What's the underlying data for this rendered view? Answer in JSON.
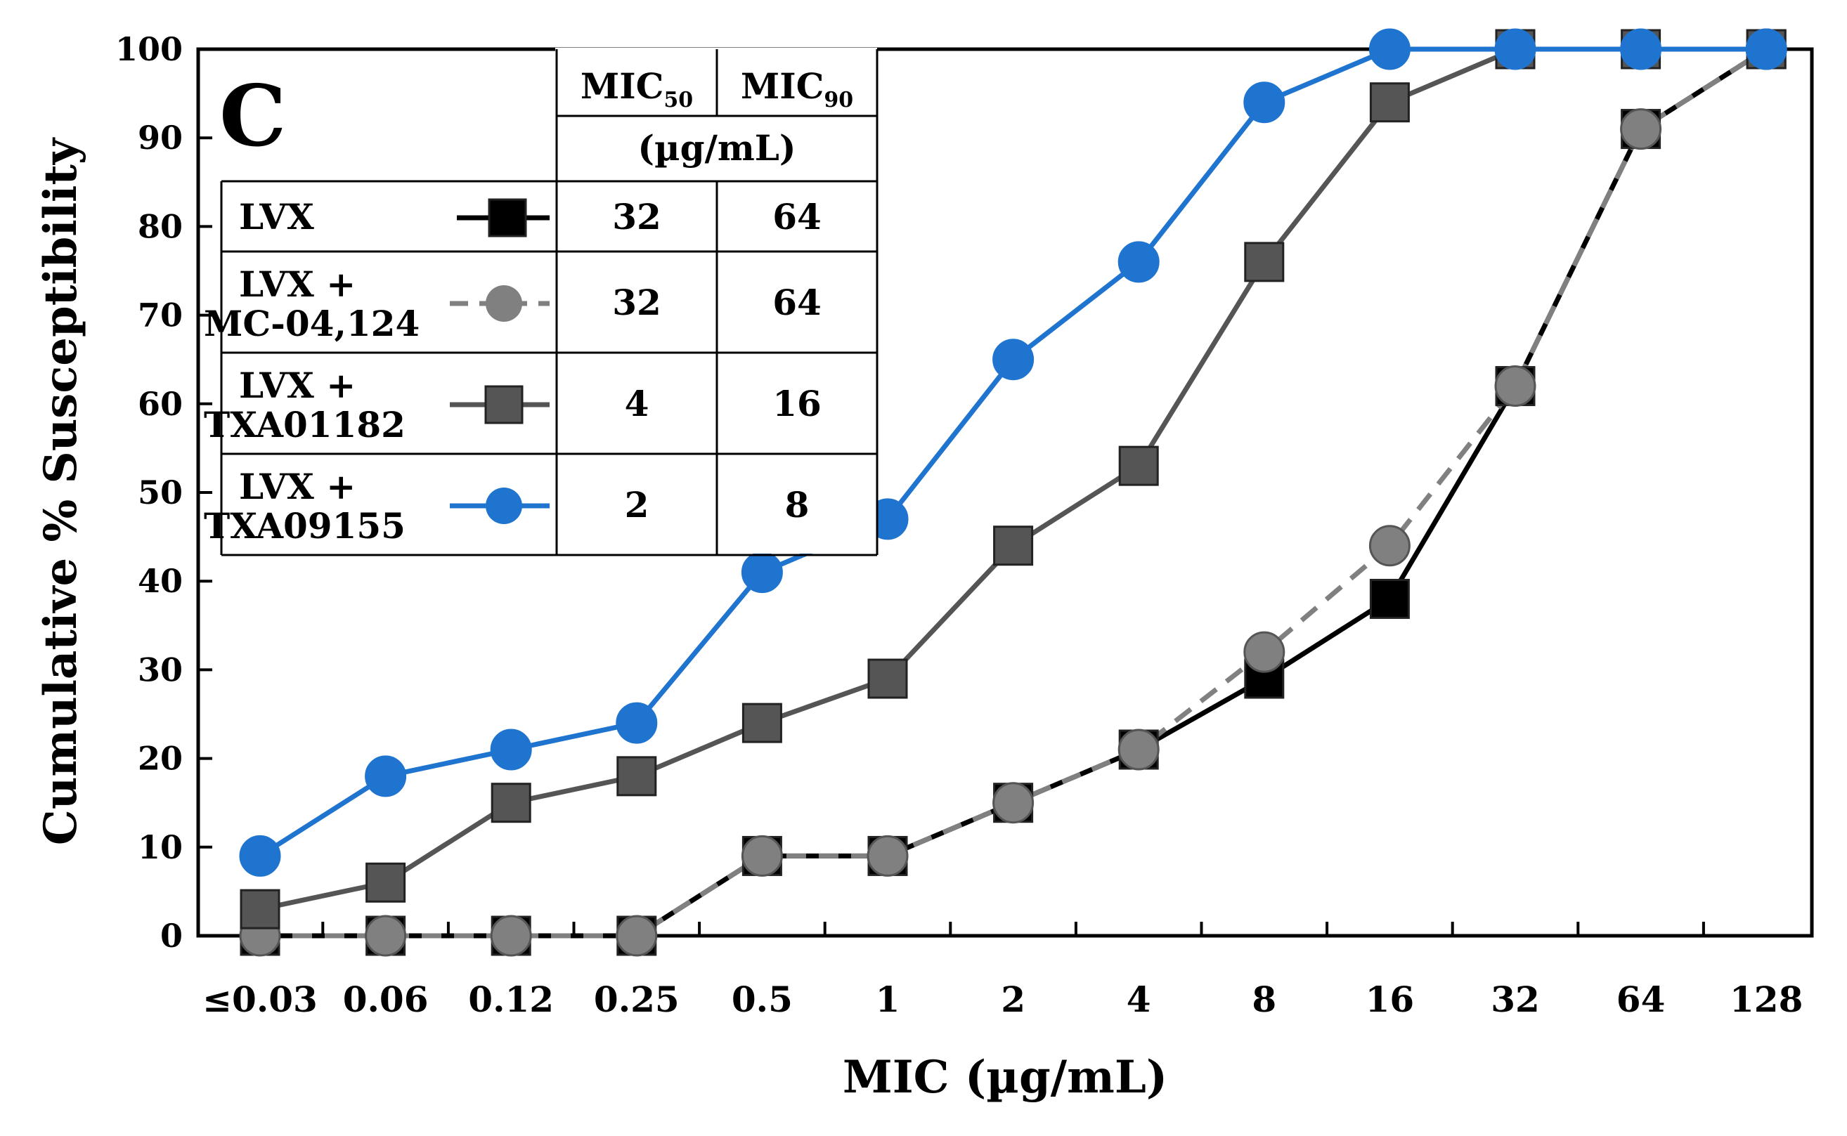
{
  "chart_data": {
    "type": "line",
    "panel_label": "C",
    "xlabel": "MIC (µg/mL)",
    "ylabel": "Cumulative % Susceptibility",
    "ylim": [
      0,
      100
    ],
    "yticks": [
      0,
      10,
      20,
      30,
      40,
      50,
      60,
      70,
      80,
      90,
      100
    ],
    "categories": [
      "≤0.03",
      "0.06",
      "0.12",
      "0.25",
      "0.5",
      "1",
      "2",
      "4",
      "8",
      "16",
      "32",
      "64",
      "128"
    ],
    "series": [
      {
        "name": "LVX",
        "color": "#000000",
        "marker": "square",
        "dash": "solid",
        "values": [
          0,
          0,
          0,
          0,
          9,
          9,
          15,
          21,
          29,
          38,
          62,
          91,
          100
        ]
      },
      {
        "name": "LVX + MC-04,124",
        "color": "#808080",
        "marker": "circle",
        "dash": "dashed",
        "values": [
          0,
          0,
          0,
          0,
          9,
          9,
          15,
          21,
          32,
          44,
          62,
          91,
          100
        ]
      },
      {
        "name": "LVX + TXA01182",
        "color": "#555555",
        "marker": "square",
        "dash": "solid",
        "values": [
          3,
          6,
          15,
          18,
          24,
          29,
          44,
          53,
          76,
          94,
          100,
          100,
          100
        ]
      },
      {
        "name": "LVX + TXA09155",
        "color": "#1f74cf",
        "marker": "circle",
        "dash": "solid",
        "values": [
          9,
          18,
          21,
          24,
          41,
          47,
          65,
          76,
          94,
          100,
          100,
          100,
          100
        ]
      }
    ],
    "legend_table": {
      "header_mic": "MIC",
      "header_50_sub": "50",
      "header_90_sub": "90",
      "units": "(µg/mL)",
      "rows": [
        {
          "label_line1": "LVX",
          "label_line2": "",
          "mic50": "32",
          "mic90": "64"
        },
        {
          "label_line1": "LVX +",
          "label_line2": "MC-04,124",
          "mic50": "32",
          "mic90": "64"
        },
        {
          "label_line1": "LVX +",
          "label_line2": "TXA01182",
          "mic50": "4",
          "mic90": "16"
        },
        {
          "label_line1": "LVX +",
          "label_line2": "TXA09155",
          "mic50": "2",
          "mic90": "8"
        }
      ]
    }
  }
}
